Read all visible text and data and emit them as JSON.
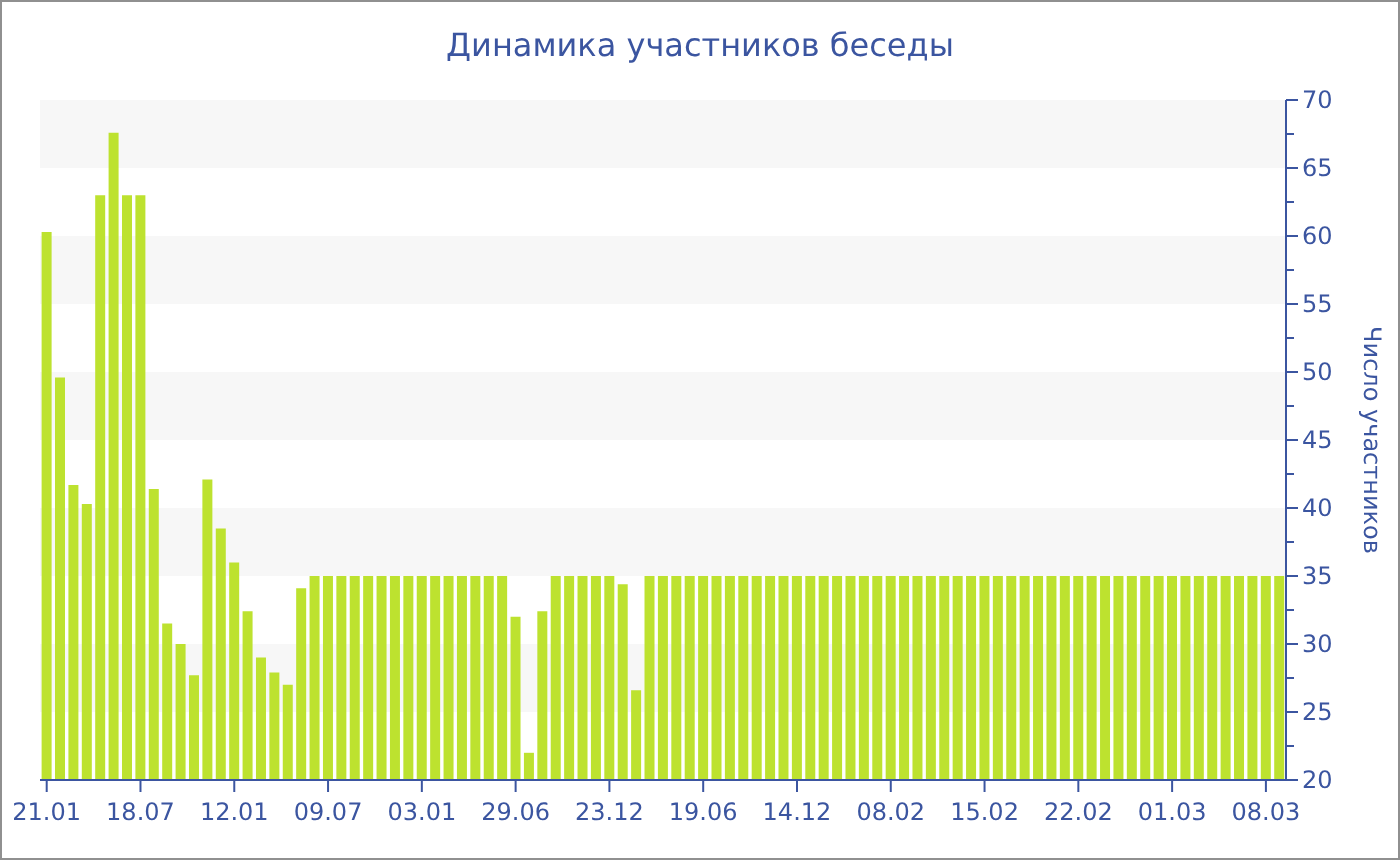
{
  "chart_data": {
    "type": "bar",
    "title": "Динамика участников беседы",
    "ylabel": "Число участников",
    "categories": [
      "21.01",
      null,
      null,
      null,
      null,
      null,
      null,
      "18.07",
      null,
      null,
      null,
      null,
      null,
      null,
      "12.01",
      null,
      null,
      null,
      null,
      null,
      null,
      "09.07",
      null,
      null,
      null,
      null,
      null,
      null,
      "03.01",
      null,
      null,
      null,
      null,
      null,
      null,
      "29.06",
      null,
      null,
      null,
      null,
      null,
      null,
      "23.12",
      null,
      null,
      null,
      null,
      null,
      null,
      "19.06",
      null,
      null,
      null,
      null,
      null,
      null,
      "14.12",
      null,
      null,
      null,
      null,
      null,
      null,
      "08.02",
      null,
      null,
      null,
      null,
      null,
      null,
      "15.02",
      null,
      null,
      null,
      null,
      null,
      null,
      "22.02",
      null,
      null,
      null,
      null,
      null,
      null,
      "01.03",
      null,
      null,
      null,
      null,
      null,
      null,
      "08.03",
      null
    ],
    "values": [
      60.3,
      49.6,
      41.7,
      40.3,
      63,
      67.6,
      63,
      63,
      41.4,
      31.5,
      30,
      27.7,
      42.1,
      38.5,
      36,
      32.4,
      29,
      27.9,
      27,
      34.1,
      35,
      35,
      35,
      35,
      35,
      35,
      35,
      35,
      35,
      35,
      35,
      35,
      35,
      35,
      35,
      32,
      22,
      32.4,
      35,
      35,
      35,
      35,
      35,
      34.4,
      26.6,
      35,
      35,
      35,
      35,
      35,
      35,
      35,
      35,
      35,
      35,
      35,
      35,
      35,
      35,
      35,
      35,
      35,
      35,
      35,
      35,
      35,
      35,
      35,
      35,
      35,
      35,
      35,
      35,
      35,
      35,
      35,
      35,
      35,
      35,
      35,
      35,
      35,
      35,
      35,
      35,
      35,
      35,
      35,
      35,
      35,
      35,
      35,
      35
    ],
    "color": "#bde22f",
    "ylim": [
      20,
      70
    ],
    "yticks": [
      20,
      {
        "value": 22.5,
        "label": null
      },
      25,
      {
        "value": 27.5,
        "label": null
      },
      30,
      {
        "value": 32.5,
        "label": null
      },
      35,
      {
        "value": 37.5,
        "label": null
      },
      40,
      {
        "value": 42.5,
        "label": null
      },
      45,
      {
        "value": 47.5,
        "label": null
      },
      50,
      {
        "value": 52.5,
        "label": null
      },
      55,
      {
        "value": 57.5,
        "label": null
      },
      60,
      {
        "value": 62.5,
        "label": null
      },
      65,
      {
        "value": 67.5,
        "label": null
      },
      70
    ],
    "bands": [
      {
        "axis": "y",
        "from": 25,
        "to": 30,
        "color": "#f7f7f7"
      },
      {
        "axis": "y",
        "from": 35,
        "to": 40,
        "color": "#f7f7f7"
      },
      {
        "axis": "y",
        "from": 45,
        "to": 50,
        "color": "#f7f7f7"
      },
      {
        "axis": "y",
        "from": 55,
        "to": 60,
        "color": "#f7f7f7"
      },
      {
        "axis": "y",
        "from": 65,
        "to": 70,
        "color": "#f7f7f7"
      }
    ],
    "grid": false,
    "legend": false
  }
}
